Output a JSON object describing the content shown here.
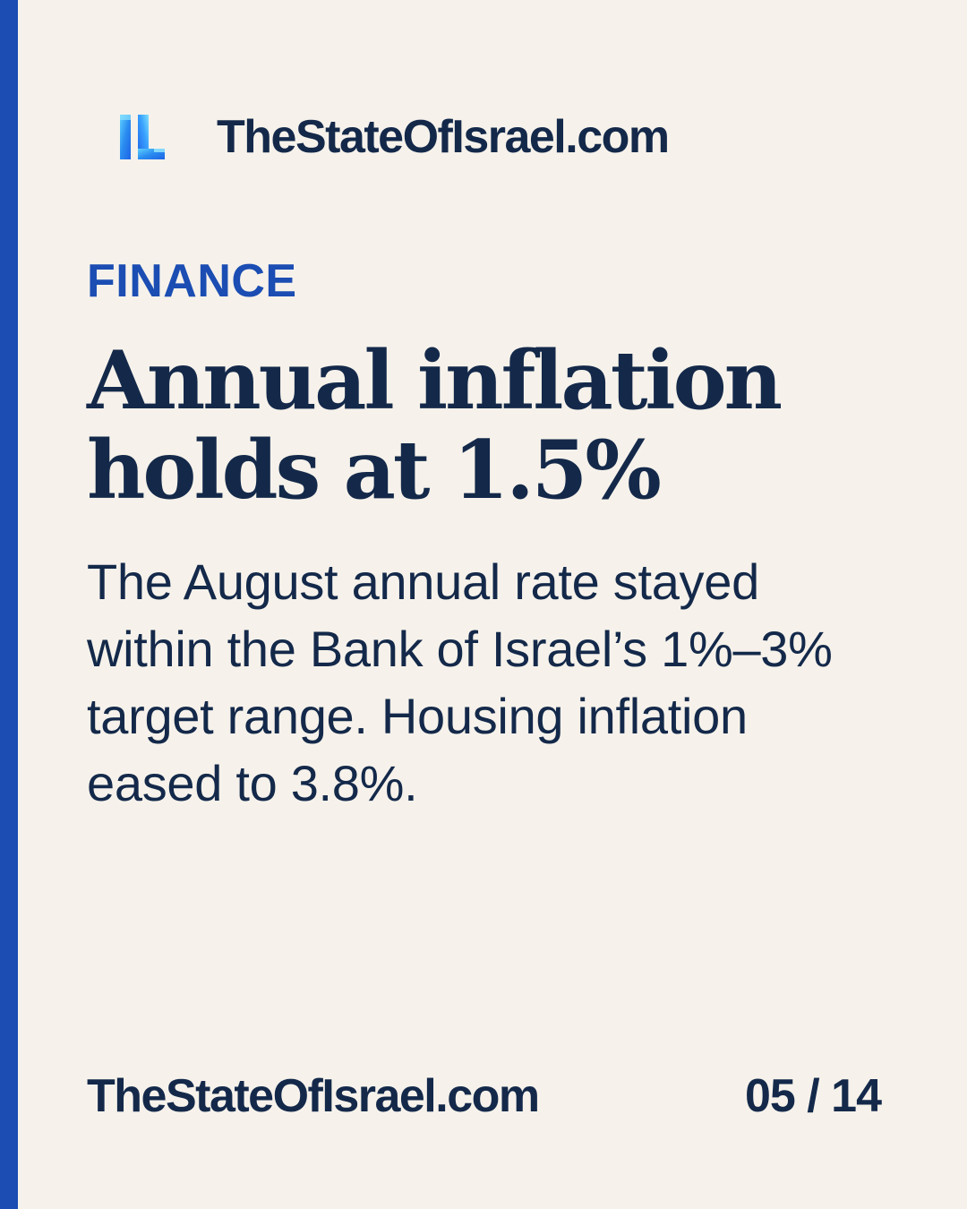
{
  "brand": {
    "site_name": "TheStateOfIsrael.com",
    "logo_icon": "il-monogram-icon",
    "logo_text": "IL"
  },
  "article": {
    "category": "FINANCE",
    "headline": "Annual inflation holds at 1.5%",
    "summary": "The August annual rate stayed within the Bank of Israel’s 1%–3% target range. Housing inflation eased to 3.8%."
  },
  "footer": {
    "site_name": "TheStateOfIsrael.com",
    "page_indicator": "05 / 14"
  },
  "colors": {
    "background": "#f6f2eb",
    "accent": "#1b4db3",
    "text": "#14294a",
    "logo_light": "#5fd0ff",
    "logo_dark": "#1d63e6"
  }
}
